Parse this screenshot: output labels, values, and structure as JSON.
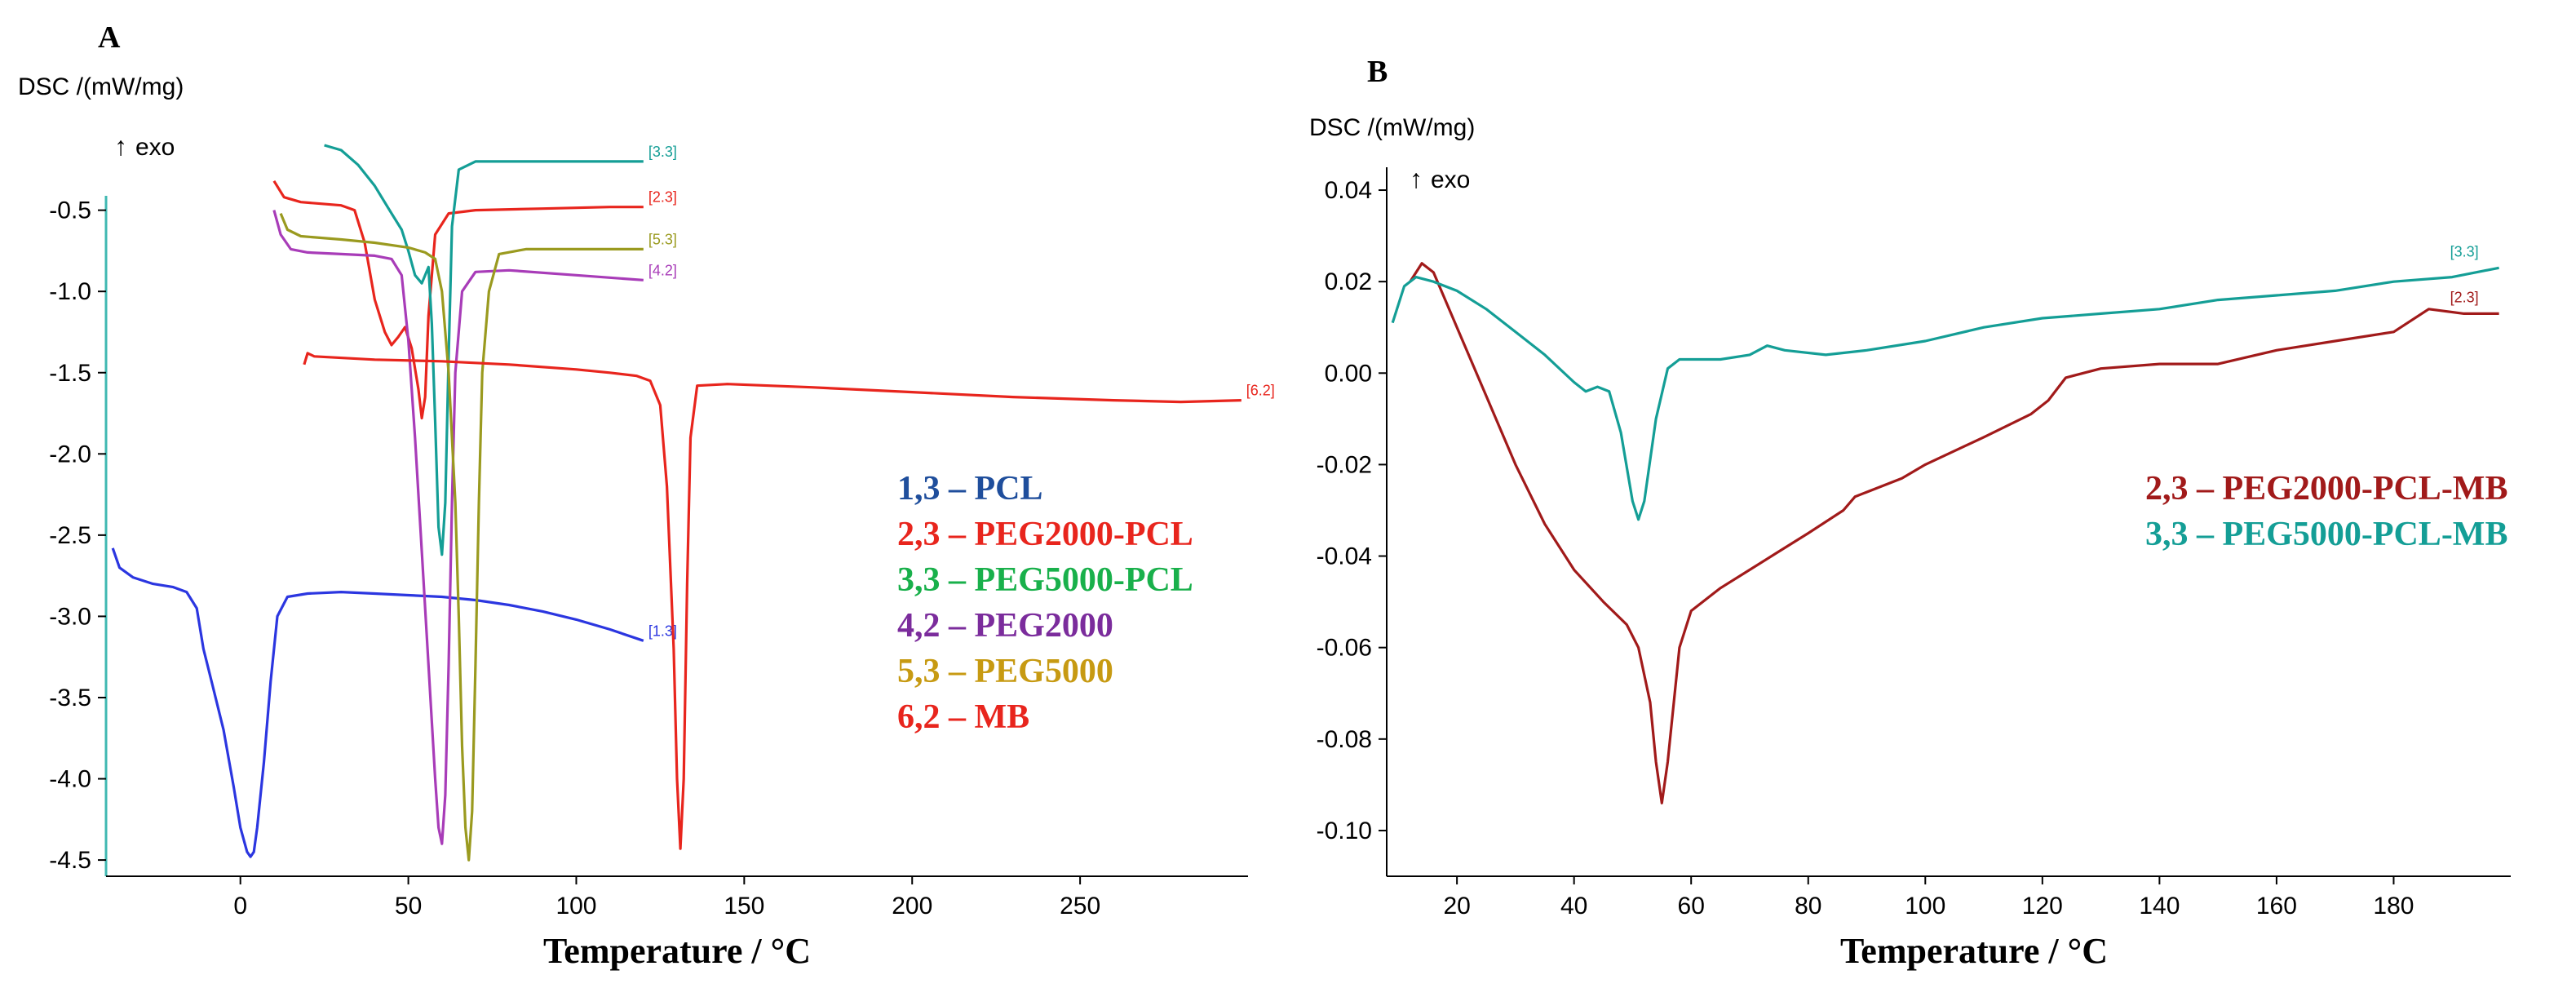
{
  "chart_data": [
    {
      "panel_label": "A",
      "type": "line",
      "ylabel": "DSC /(mW/mg)",
      "direction_label": "exo",
      "xlabel": "Temperature / °C",
      "xlim": [
        -40,
        300
      ],
      "ylim": [
        -4.6,
        -0.1
      ],
      "x_ticks": [
        0,
        50,
        100,
        150,
        200,
        250
      ],
      "y_ticks": [
        -0.5,
        -1.0,
        -1.5,
        -2.0,
        -2.5,
        -3.0,
        -3.5,
        -4.0,
        -4.5
      ],
      "x_tick_labels": [
        "0",
        "50",
        "100",
        "150",
        "200",
        "250"
      ],
      "y_tick_labels": [
        "-0.5",
        "-1.0",
        "-1.5",
        "-2.0",
        "-2.5",
        "-3.0",
        "-3.5",
        "-4.0",
        "-4.5"
      ],
      "grid": false,
      "legend_position": "right",
      "legend": [
        {
          "text": "1,3 – PCL",
          "color": "#1f4e9c"
        },
        {
          "text": "2,3 – PEG2000-PCL",
          "color": "#e8251d"
        },
        {
          "text": "3,3 – PEG5000-PCL",
          "color": "#19b04b"
        },
        {
          "text": "4,2 – PEG2000",
          "color": "#7b2c9c"
        },
        {
          "text": "5,3 – PEG5000",
          "color": "#c79a12"
        },
        {
          "text": "6,2 – MB",
          "color": "#e8251d"
        }
      ],
      "series": [
        {
          "tag": "[1.3]",
          "color": "#2b36e0",
          "points": [
            [
              -38,
              -2.58
            ],
            [
              -36,
              -2.7
            ],
            [
              -32,
              -2.76
            ],
            [
              -26,
              -2.8
            ],
            [
              -20,
              -2.82
            ],
            [
              -16,
              -2.85
            ],
            [
              -13,
              -2.95
            ],
            [
              -11,
              -3.2
            ],
            [
              -8,
              -3.45
            ],
            [
              -5,
              -3.7
            ],
            [
              -2,
              -4.05
            ],
            [
              0,
              -4.3
            ],
            [
              2,
              -4.45
            ],
            [
              3,
              -4.48
            ],
            [
              4,
              -4.45
            ],
            [
              5,
              -4.3
            ],
            [
              7,
              -3.9
            ],
            [
              9,
              -3.4
            ],
            [
              11,
              -3.0
            ],
            [
              14,
              -2.88
            ],
            [
              20,
              -2.86
            ],
            [
              30,
              -2.85
            ],
            [
              40,
              -2.86
            ],
            [
              50,
              -2.87
            ],
            [
              60,
              -2.88
            ],
            [
              70,
              -2.9
            ],
            [
              80,
              -2.93
            ],
            [
              90,
              -2.97
            ],
            [
              100,
              -3.02
            ],
            [
              110,
              -3.08
            ],
            [
              120,
              -3.15
            ]
          ]
        },
        {
          "tag": "[2.3]",
          "color": "#e8251d",
          "points": [
            [
              10,
              -0.32
            ],
            [
              13,
              -0.42
            ],
            [
              18,
              -0.45
            ],
            [
              24,
              -0.46
            ],
            [
              30,
              -0.47
            ],
            [
              34,
              -0.5
            ],
            [
              37,
              -0.7
            ],
            [
              40,
              -1.05
            ],
            [
              43,
              -1.25
            ],
            [
              45,
              -1.33
            ],
            [
              47,
              -1.28
            ],
            [
              49,
              -1.22
            ],
            [
              51,
              -1.35
            ],
            [
              53,
              -1.6
            ],
            [
              54,
              -1.78
            ],
            [
              55,
              -1.65
            ],
            [
              56,
              -1.15
            ],
            [
              58,
              -0.65
            ],
            [
              62,
              -0.52
            ],
            [
              70,
              -0.5
            ],
            [
              90,
              -0.49
            ],
            [
              110,
              -0.48
            ],
            [
              120,
              -0.48
            ]
          ]
        },
        {
          "tag": "[3.3]",
          "color": "#149e96",
          "points": [
            [
              25,
              -0.1
            ],
            [
              30,
              -0.13
            ],
            [
              35,
              -0.22
            ],
            [
              40,
              -0.35
            ],
            [
              45,
              -0.52
            ],
            [
              48,
              -0.62
            ],
            [
              50,
              -0.75
            ],
            [
              52,
              -0.9
            ],
            [
              54,
              -0.95
            ],
            [
              56,
              -0.85
            ],
            [
              57,
              -1.2
            ],
            [
              58,
              -1.8
            ],
            [
              59,
              -2.45
            ],
            [
              60,
              -2.62
            ],
            [
              61,
              -2.3
            ],
            [
              62,
              -1.4
            ],
            [
              63,
              -0.6
            ],
            [
              65,
              -0.25
            ],
            [
              70,
              -0.2
            ],
            [
              90,
              -0.2
            ],
            [
              120,
              -0.2
            ]
          ]
        },
        {
          "tag": "[4.2]",
          "color": "#a83cb8",
          "points": [
            [
              10,
              -0.5
            ],
            [
              12,
              -0.65
            ],
            [
              15,
              -0.74
            ],
            [
              20,
              -0.76
            ],
            [
              30,
              -0.77
            ],
            [
              40,
              -0.78
            ],
            [
              45,
              -0.8
            ],
            [
              48,
              -0.9
            ],
            [
              50,
              -1.3
            ],
            [
              52,
              -1.9
            ],
            [
              54,
              -2.6
            ],
            [
              56,
              -3.3
            ],
            [
              58,
              -4.0
            ],
            [
              59,
              -4.3
            ],
            [
              60,
              -4.4
            ],
            [
              61,
              -4.1
            ],
            [
              62,
              -3.3
            ],
            [
              63,
              -2.3
            ],
            [
              64,
              -1.5
            ],
            [
              66,
              -1.0
            ],
            [
              70,
              -0.88
            ],
            [
              80,
              -0.87
            ],
            [
              100,
              -0.9
            ],
            [
              120,
              -0.93
            ]
          ]
        },
        {
          "tag": "[5.3]",
          "color": "#9a9a1f",
          "points": [
            [
              12,
              -0.52
            ],
            [
              14,
              -0.62
            ],
            [
              18,
              -0.66
            ],
            [
              30,
              -0.68
            ],
            [
              40,
              -0.7
            ],
            [
              50,
              -0.73
            ],
            [
              55,
              -0.76
            ],
            [
              58,
              -0.8
            ],
            [
              60,
              -1.0
            ],
            [
              62,
              -1.5
            ],
            [
              64,
              -2.3
            ],
            [
              65,
              -3.0
            ],
            [
              66,
              -3.8
            ],
            [
              67,
              -4.3
            ],
            [
              68,
              -4.5
            ],
            [
              69,
              -4.2
            ],
            [
              70,
              -3.3
            ],
            [
              71,
              -2.3
            ],
            [
              72,
              -1.5
            ],
            [
              74,
              -1.0
            ],
            [
              77,
              -0.77
            ],
            [
              85,
              -0.74
            ],
            [
              100,
              -0.74
            ],
            [
              120,
              -0.74
            ]
          ]
        },
        {
          "tag": "[6.2]",
          "color": "#e8251d",
          "points": [
            [
              19,
              -1.45
            ],
            [
              20,
              -1.38
            ],
            [
              22,
              -1.4
            ],
            [
              40,
              -1.42
            ],
            [
              60,
              -1.43
            ],
            [
              80,
              -1.45
            ],
            [
              100,
              -1.48
            ],
            [
              110,
              -1.5
            ],
            [
              118,
              -1.52
            ],
            [
              122,
              -1.55
            ],
            [
              125,
              -1.7
            ],
            [
              127,
              -2.2
            ],
            [
              129,
              -3.2
            ],
            [
              130,
              -4.0
            ],
            [
              131,
              -4.43
            ],
            [
              132,
              -4.0
            ],
            [
              133,
              -2.8
            ],
            [
              134,
              -1.9
            ],
            [
              136,
              -1.58
            ],
            [
              145,
              -1.57
            ],
            [
              170,
              -1.59
            ],
            [
              200,
              -1.62
            ],
            [
              230,
              -1.65
            ],
            [
              260,
              -1.67
            ],
            [
              280,
              -1.68
            ],
            [
              298,
              -1.67
            ]
          ]
        }
      ]
    },
    {
      "panel_label": "B",
      "type": "line",
      "ylabel": "DSC /(mW/mg)",
      "direction_label": "exo",
      "xlabel": "Temperature / °C",
      "xlim": [
        8,
        200
      ],
      "ylim": [
        -0.11,
        0.045
      ],
      "x_ticks": [
        20,
        40,
        60,
        80,
        100,
        120,
        140,
        160,
        180
      ],
      "y_ticks": [
        0.04,
        0.02,
        0.0,
        -0.02,
        -0.04,
        -0.06,
        -0.08,
        -0.1
      ],
      "x_tick_labels": [
        "20",
        "40",
        "60",
        "80",
        "100",
        "120",
        "140",
        "160",
        "180"
      ],
      "y_tick_labels": [
        "0.04",
        "0.02",
        "0.00",
        "-0.02",
        "-0.04",
        "-0.06",
        "-0.08",
        "-0.10"
      ],
      "grid": false,
      "legend_position": "right",
      "legend": [
        {
          "text": "2,3 – PEG2000-PCL-MB",
          "color": "#a11a1a"
        },
        {
          "text": "3,3 – PEG5000-PCL-MB",
          "color": "#149e96"
        }
      ],
      "series": [
        {
          "tag": "[2.3]",
          "color": "#a11a1a",
          "points": [
            [
              12,
              0.02
            ],
            [
              14,
              0.024
            ],
            [
              16,
              0.022
            ],
            [
              20,
              0.01
            ],
            [
              25,
              -0.005
            ],
            [
              30,
              -0.02
            ],
            [
              35,
              -0.033
            ],
            [
              40,
              -0.043
            ],
            [
              45,
              -0.05
            ],
            [
              49,
              -0.055
            ],
            [
              51,
              -0.06
            ],
            [
              53,
              -0.072
            ],
            [
              54,
              -0.085
            ],
            [
              55,
              -0.094
            ],
            [
              56,
              -0.085
            ],
            [
              58,
              -0.06
            ],
            [
              60,
              -0.052
            ],
            [
              65,
              -0.047
            ],
            [
              70,
              -0.043
            ],
            [
              75,
              -0.039
            ],
            [
              80,
              -0.035
            ],
            [
              86,
              -0.03
            ],
            [
              88,
              -0.027
            ],
            [
              92,
              -0.025
            ],
            [
              96,
              -0.023
            ],
            [
              100,
              -0.02
            ],
            [
              110,
              -0.014
            ],
            [
              118,
              -0.009
            ],
            [
              121,
              -0.006
            ],
            [
              124,
              -0.001
            ],
            [
              130,
              0.001
            ],
            [
              140,
              0.002
            ],
            [
              150,
              0.002
            ],
            [
              160,
              0.005
            ],
            [
              170,
              0.007
            ],
            [
              180,
              0.009
            ],
            [
              186,
              0.014
            ],
            [
              192,
              0.013
            ],
            [
              198,
              0.013
            ]
          ]
        },
        {
          "tag": "[3.3]",
          "color": "#149e96",
          "points": [
            [
              9,
              0.011
            ],
            [
              11,
              0.019
            ],
            [
              13,
              0.021
            ],
            [
              16,
              0.02
            ],
            [
              20,
              0.018
            ],
            [
              25,
              0.014
            ],
            [
              30,
              0.009
            ],
            [
              35,
              0.004
            ],
            [
              40,
              -0.002
            ],
            [
              42,
              -0.004
            ],
            [
              44,
              -0.003
            ],
            [
              46,
              -0.004
            ],
            [
              48,
              -0.013
            ],
            [
              50,
              -0.028
            ],
            [
              51,
              -0.032
            ],
            [
              52,
              -0.028
            ],
            [
              54,
              -0.01
            ],
            [
              56,
              0.001
            ],
            [
              58,
              0.003
            ],
            [
              65,
              0.003
            ],
            [
              70,
              0.004
            ],
            [
              73,
              0.006
            ],
            [
              76,
              0.005
            ],
            [
              83,
              0.004
            ],
            [
              90,
              0.005
            ],
            [
              100,
              0.007
            ],
            [
              110,
              0.01
            ],
            [
              120,
              0.012
            ],
            [
              130,
              0.013
            ],
            [
              140,
              0.014
            ],
            [
              150,
              0.016
            ],
            [
              160,
              0.017
            ],
            [
              170,
              0.018
            ],
            [
              180,
              0.02
            ],
            [
              190,
              0.021
            ],
            [
              198,
              0.023
            ]
          ]
        }
      ]
    }
  ]
}
